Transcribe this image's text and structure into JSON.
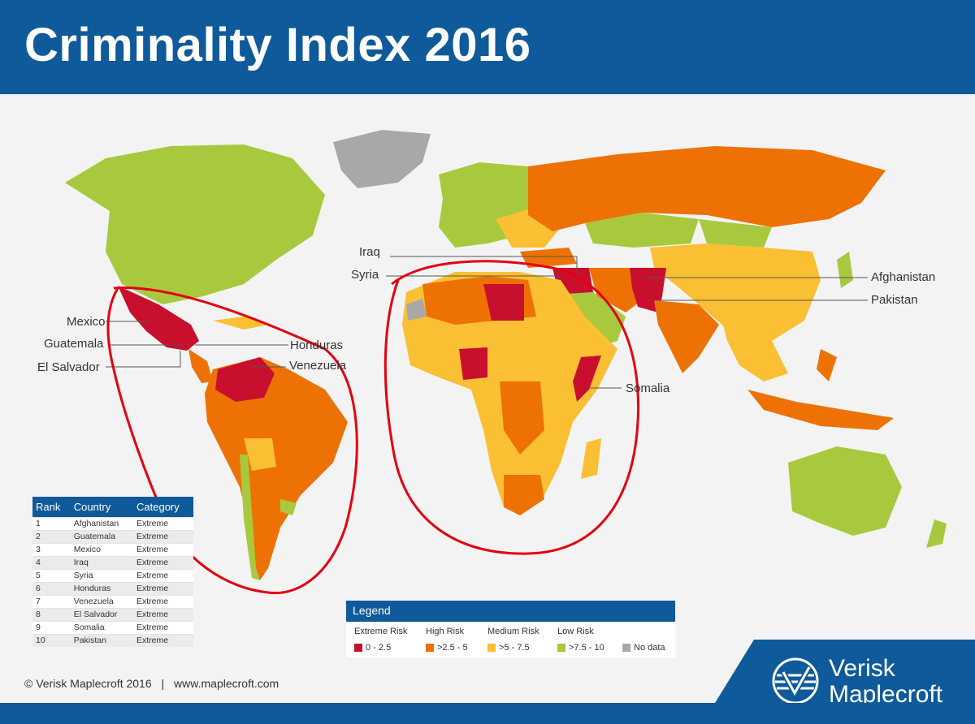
{
  "title": "Criminality Index 2016",
  "colors": {
    "header": "#0f5a9a",
    "extreme": "#c8102e",
    "high": "#ee7203",
    "medium": "#fbbf34",
    "low": "#a8c93d",
    "nodata": "#a8a8a8",
    "annotation": "#e3000f"
  },
  "map_labels": {
    "mexico": "Mexico",
    "guatemala": "Guatemala",
    "el_salvador": "El Salvador",
    "honduras": "Honduras",
    "venezuela": "Venezuela",
    "iraq": "Iraq",
    "syria": "Syria",
    "afghanistan": "Afghanistan",
    "pakistan": "Pakistan",
    "somalia": "Somalia"
  },
  "ranking": {
    "headers": [
      "Rank",
      "Country",
      "Category"
    ],
    "rows": [
      [
        "1",
        "Afghanistan",
        "Extreme"
      ],
      [
        "2",
        "Guatemala",
        "Extreme"
      ],
      [
        "3",
        "Mexico",
        "Extreme"
      ],
      [
        "4",
        "Iraq",
        "Extreme"
      ],
      [
        "5",
        "Syria",
        "Extreme"
      ],
      [
        "6",
        "Honduras",
        "Extreme"
      ],
      [
        "7",
        "Venezuela",
        "Extreme"
      ],
      [
        "8",
        "El Salvador",
        "Extreme"
      ],
      [
        "9",
        "Somalia",
        "Extreme"
      ],
      [
        "10",
        "Pakistan",
        "Extreme"
      ]
    ]
  },
  "legend": {
    "title": "Legend",
    "categories": [
      {
        "name": "Extreme Risk",
        "range": "0 - 2.5"
      },
      {
        "name": "High Risk",
        "range": ">2.5 - 5"
      },
      {
        "name": "Medium Risk",
        "range": ">5 - 7.5"
      },
      {
        "name": "Low Risk",
        "range": ">7.5 - 10"
      }
    ],
    "nodata": "No data"
  },
  "footer": {
    "copyright": "© Verisk Maplecroft 2016",
    "separator": "|",
    "url": "www.maplecroft.com"
  },
  "brand": {
    "line1": "Verisk",
    "line2": "Maplecroft"
  }
}
